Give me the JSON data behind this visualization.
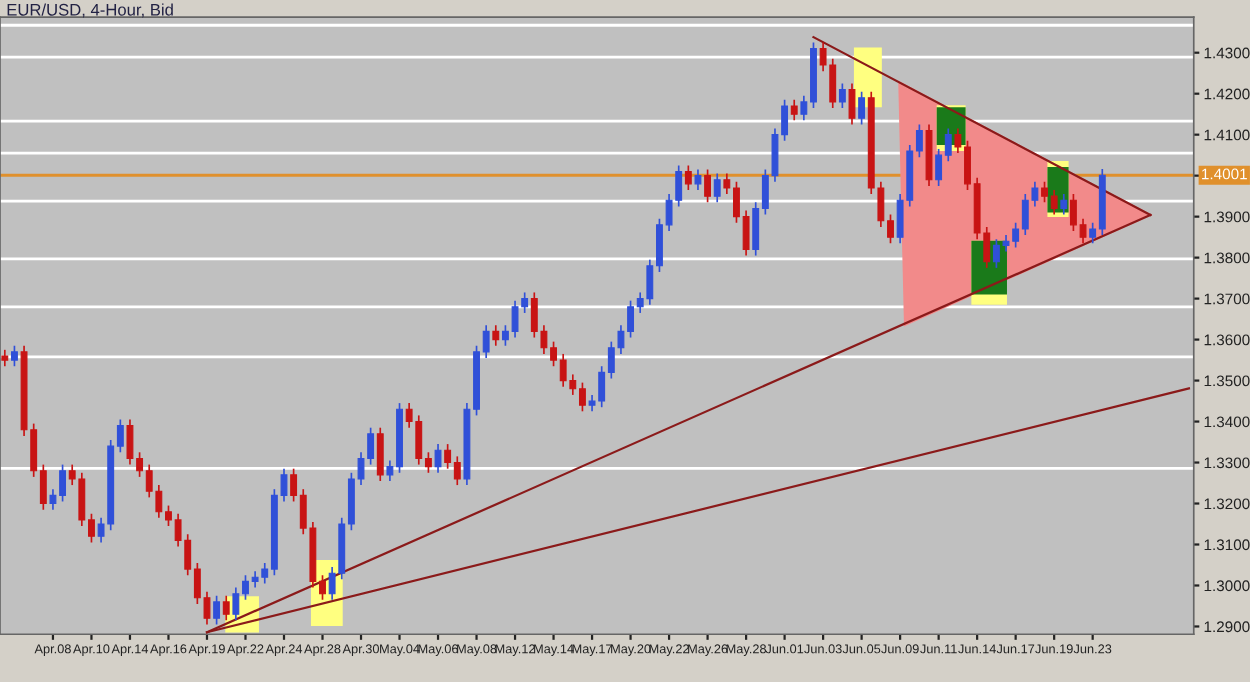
{
  "chart_data": {
    "type": "candlestick",
    "title": "EUR/USD, 4-Hour, Bid",
    "categories": [
      null,
      null,
      null,
      null,
      null,
      "Apr.08",
      null,
      null,
      null,
      "Apr.10",
      null,
      null,
      null,
      "Apr.14",
      null,
      null,
      null,
      "Apr.16",
      null,
      null,
      null,
      "Apr.19",
      null,
      null,
      null,
      "Apr.22",
      null,
      null,
      null,
      "Apr.24",
      null,
      null,
      null,
      "Apr.28",
      null,
      null,
      null,
      "Apr.30",
      null,
      null,
      null,
      "May.04",
      null,
      null,
      null,
      "May.06",
      null,
      null,
      null,
      "May.08",
      null,
      null,
      null,
      "May.12",
      null,
      null,
      null,
      "May.14",
      null,
      null,
      null,
      "May.17",
      null,
      null,
      null,
      "May.20",
      null,
      null,
      null,
      "May.22",
      null,
      null,
      null,
      "May.26",
      null,
      null,
      null,
      "May.28",
      null,
      null,
      null,
      "Jun.01",
      null,
      null,
      null,
      "Jun.03",
      null,
      null,
      null,
      "Jun.05",
      null,
      null,
      null,
      "Jun.09",
      null,
      null,
      null,
      "Jun.11",
      null,
      null,
      null,
      "Jun.14",
      null,
      null,
      null,
      "Jun.17",
      null,
      null,
      null,
      "Jun.19",
      null,
      null,
      null,
      "Jun.23",
      null,
      null,
      null,
      null,
      null,
      null,
      null,
      null,
      null,
      null
    ],
    "ohlc": [
      [
        1.356,
        1.3575,
        1.3535,
        1.355
      ],
      [
        1.355,
        1.3585,
        1.3535,
        1.357
      ],
      [
        1.357,
        1.3585,
        1.3365,
        1.338
      ],
      [
        1.338,
        1.3395,
        1.3265,
        1.328
      ],
      [
        1.328,
        1.3295,
        1.3185,
        1.32
      ],
      [
        1.32,
        1.3235,
        1.3185,
        1.322
      ],
      [
        1.322,
        1.3295,
        1.3205,
        1.328
      ],
      [
        1.328,
        1.3295,
        1.3245,
        1.326
      ],
      [
        1.326,
        1.3275,
        1.3145,
        1.316
      ],
      [
        1.316,
        1.3175,
        1.3105,
        1.312
      ],
      [
        1.312,
        1.3165,
        1.3105,
        1.315
      ],
      [
        1.315,
        1.3355,
        1.3135,
        1.334
      ],
      [
        1.334,
        1.3405,
        1.3325,
        1.339
      ],
      [
        1.339,
        1.3405,
        1.3295,
        1.331
      ],
      [
        1.331,
        1.3325,
        1.3265,
        1.328
      ],
      [
        1.328,
        1.3295,
        1.3215,
        1.323
      ],
      [
        1.323,
        1.3245,
        1.3165,
        1.318
      ],
      [
        1.318,
        1.3195,
        1.3145,
        1.316
      ],
      [
        1.316,
        1.3175,
        1.3095,
        1.311
      ],
      [
        1.311,
        1.3125,
        1.3025,
        1.304
      ],
      [
        1.304,
        1.3055,
        1.2955,
        1.297
      ],
      [
        1.297,
        1.2985,
        1.2905,
        1.292
      ],
      [
        1.292,
        1.2975,
        1.2905,
        1.296
      ],
      [
        1.296,
        1.2975,
        1.2915,
        1.293
      ],
      [
        1.293,
        1.2995,
        1.2915,
        1.298
      ],
      [
        1.298,
        1.3025,
        1.2965,
        1.301
      ],
      [
        1.301,
        1.3035,
        1.2995,
        1.302
      ],
      [
        1.302,
        1.3055,
        1.3005,
        1.304
      ],
      [
        1.304,
        1.3235,
        1.3025,
        1.322
      ],
      [
        1.322,
        1.3285,
        1.3205,
        1.327
      ],
      [
        1.327,
        1.3285,
        1.3205,
        1.322
      ],
      [
        1.322,
        1.3235,
        1.3125,
        1.314
      ],
      [
        1.314,
        1.3155,
        1.2995,
        1.301
      ],
      [
        1.301,
        1.3025,
        1.2965,
        1.298
      ],
      [
        1.298,
        1.3045,
        1.2965,
        1.303
      ],
      [
        1.303,
        1.3165,
        1.3015,
        1.315
      ],
      [
        1.315,
        1.3275,
        1.3135,
        1.326
      ],
      [
        1.326,
        1.3325,
        1.3245,
        1.331
      ],
      [
        1.331,
        1.3385,
        1.3295,
        1.337
      ],
      [
        1.337,
        1.3385,
        1.3255,
        1.327
      ],
      [
        1.327,
        1.3305,
        1.3255,
        1.329
      ],
      [
        1.329,
        1.3445,
        1.3275,
        1.343
      ],
      [
        1.343,
        1.3445,
        1.3385,
        1.34
      ],
      [
        1.34,
        1.3415,
        1.3295,
        1.331
      ],
      [
        1.331,
        1.3325,
        1.3275,
        1.329
      ],
      [
        1.329,
        1.3345,
        1.3275,
        1.333
      ],
      [
        1.333,
        1.3345,
        1.3285,
        1.33
      ],
      [
        1.33,
        1.3315,
        1.3245,
        1.326
      ],
      [
        1.326,
        1.3445,
        1.3245,
        1.343
      ],
      [
        1.343,
        1.3585,
        1.3415,
        1.357
      ],
      [
        1.357,
        1.3635,
        1.3555,
        1.362
      ],
      [
        1.362,
        1.3635,
        1.3585,
        1.36
      ],
      [
        1.36,
        1.3635,
        1.3585,
        1.362
      ],
      [
        1.362,
        1.3695,
        1.3605,
        1.368
      ],
      [
        1.368,
        1.3715,
        1.3665,
        1.37
      ],
      [
        1.37,
        1.3715,
        1.3605,
        1.362
      ],
      [
        1.362,
        1.3635,
        1.3565,
        1.358
      ],
      [
        1.358,
        1.3595,
        1.3535,
        1.355
      ],
      [
        1.355,
        1.3565,
        1.3485,
        1.35
      ],
      [
        1.35,
        1.3515,
        1.3465,
        1.348
      ],
      [
        1.348,
        1.3495,
        1.3425,
        1.344
      ],
      [
        1.344,
        1.3465,
        1.3425,
        1.345
      ],
      [
        1.345,
        1.3535,
        1.3435,
        1.352
      ],
      [
        1.352,
        1.3595,
        1.3505,
        1.358
      ],
      [
        1.358,
        1.3635,
        1.3565,
        1.362
      ],
      [
        1.362,
        1.3695,
        1.3605,
        1.368
      ],
      [
        1.368,
        1.3715,
        1.3665,
        1.37
      ],
      [
        1.37,
        1.3795,
        1.3685,
        1.378
      ],
      [
        1.378,
        1.3895,
        1.3765,
        1.388
      ],
      [
        1.388,
        1.3955,
        1.3865,
        1.394
      ],
      [
        1.394,
        1.4025,
        1.3925,
        1.401
      ],
      [
        1.401,
        1.4025,
        1.3965,
        1.398
      ],
      [
        1.398,
        1.4015,
        1.3965,
        1.4
      ],
      [
        1.4,
        1.4015,
        1.3935,
        1.395
      ],
      [
        1.395,
        1.4005,
        1.3935,
        1.399
      ],
      [
        1.399,
        1.4005,
        1.3955,
        1.397
      ],
      [
        1.397,
        1.3985,
        1.3885,
        1.39
      ],
      [
        1.39,
        1.3915,
        1.3805,
        1.382
      ],
      [
        1.382,
        1.3935,
        1.3805,
        1.392
      ],
      [
        1.392,
        1.4015,
        1.3905,
        1.4
      ],
      [
        1.4,
        1.4115,
        1.3985,
        1.41
      ],
      [
        1.41,
        1.4185,
        1.4085,
        1.417
      ],
      [
        1.417,
        1.4185,
        1.4135,
        1.415
      ],
      [
        1.415,
        1.4195,
        1.4135,
        1.418
      ],
      [
        1.418,
        1.4325,
        1.4165,
        1.431
      ],
      [
        1.431,
        1.4325,
        1.4255,
        1.427
      ],
      [
        1.427,
        1.4285,
        1.4165,
        1.418
      ],
      [
        1.418,
        1.4225,
        1.4165,
        1.421
      ],
      [
        1.421,
        1.4225,
        1.4125,
        1.414
      ],
      [
        1.414,
        1.4205,
        1.4125,
        1.419
      ],
      [
        1.419,
        1.4205,
        1.3955,
        1.397
      ],
      [
        1.397,
        1.3985,
        1.3875,
        1.389
      ],
      [
        1.389,
        1.3905,
        1.3835,
        1.385
      ],
      [
        1.385,
        1.3955,
        1.3835,
        1.394
      ],
      [
        1.394,
        1.4075,
        1.3925,
        1.406
      ],
      [
        1.406,
        1.4125,
        1.4045,
        1.411
      ],
      [
        1.411,
        1.4125,
        1.3975,
        1.399
      ],
      [
        1.399,
        1.4065,
        1.3975,
        1.405
      ],
      [
        1.405,
        1.4115,
        1.4035,
        1.41
      ],
      [
        1.41,
        1.4115,
        1.4055,
        1.407
      ],
      [
        1.407,
        1.4085,
        1.3965,
        1.398
      ],
      [
        1.398,
        1.3995,
        1.3845,
        1.386
      ],
      [
        1.386,
        1.3875,
        1.3775,
        1.379
      ],
      [
        1.379,
        1.3845,
        1.3775,
        1.383
      ],
      [
        1.383,
        1.3855,
        1.3815,
        1.384
      ],
      [
        1.384,
        1.3885,
        1.3825,
        1.387
      ],
      [
        1.387,
        1.3955,
        1.3855,
        1.394
      ],
      [
        1.394,
        1.3985,
        1.3925,
        1.397
      ],
      [
        1.397,
        1.3985,
        1.3935,
        1.395
      ],
      [
        1.395,
        1.3965,
        1.3905,
        1.392
      ],
      [
        1.392,
        1.3955,
        1.3905,
        1.394
      ],
      [
        1.394,
        1.3955,
        1.3865,
        1.388
      ],
      [
        1.388,
        1.3895,
        1.3835,
        1.385
      ],
      [
        1.385,
        1.3885,
        1.3835,
        1.387
      ],
      [
        1.387,
        1.4016,
        1.3855,
        1.4001
      ],
      null,
      null,
      null,
      null,
      null,
      null,
      null,
      null,
      null
    ],
    "series": [
      {
        "type": "line",
        "color": "#8b1a1a",
        "values": [
          null,
          null,
          null,
          null,
          null,
          null,
          null,
          null,
          null,
          null,
          null,
          null,
          null,
          null,
          null,
          null,
          null,
          null,
          null,
          null,
          null,
          null,
          null,
          null,
          null,
          null,
          null,
          null,
          null,
          null,
          null,
          null,
          null,
          null,
          null,
          null,
          null,
          null,
          null,
          null,
          null,
          null,
          null,
          null,
          null,
          null,
          null,
          null,
          null,
          null,
          null,
          null,
          null,
          null,
          null,
          null,
          null,
          null,
          null,
          null,
          null,
          null,
          null,
          null,
          null,
          null,
          null,
          null,
          null,
          null,
          null,
          null,
          null,
          null,
          null,
          null,
          null,
          null,
          null,
          null,
          null,
          null,
          null,
          null,
          1.4338,
          null,
          null,
          null,
          null,
          null,
          null,
          null,
          null,
          null,
          null,
          null,
          null,
          null,
          null,
          null,
          null,
          null,
          null,
          null,
          null,
          null,
          null,
          null,
          null,
          null,
          null,
          null,
          null,
          null,
          null,
          null,
          null,
          null,
          null,
          1.3904,
          null,
          null,
          null,
          null
        ]
      },
      {
        "type": "line",
        "color": "#8b1a1a",
        "values": [
          null,
          null,
          null,
          null,
          null,
          null,
          null,
          null,
          null,
          null,
          null,
          null,
          null,
          null,
          null,
          null,
          null,
          null,
          null,
          null,
          null,
          1.2886,
          null,
          null,
          null,
          null,
          null,
          null,
          null,
          null,
          null,
          null,
          null,
          null,
          null,
          null,
          null,
          null,
          null,
          null,
          null,
          null,
          null,
          null,
          null,
          null,
          null,
          null,
          null,
          null,
          null,
          null,
          null,
          null,
          null,
          null,
          null,
          null,
          null,
          null,
          null,
          null,
          null,
          null,
          null,
          null,
          null,
          null,
          null,
          null,
          null,
          null,
          null,
          null,
          null,
          null,
          null,
          null,
          null,
          null,
          null,
          null,
          null,
          null,
          null,
          null,
          null,
          null,
          null,
          null,
          null,
          null,
          null,
          null,
          null,
          null,
          null,
          null,
          null,
          null,
          null,
          null,
          null,
          null,
          null,
          null,
          null,
          null,
          null,
          null,
          null,
          null,
          null,
          null,
          null,
          null,
          null,
          null,
          null,
          1.3904,
          null,
          null,
          null,
          null
        ]
      },
      {
        "type": "line",
        "color": "#8b1a1a",
        "values": [
          null,
          null,
          null,
          null,
          null,
          null,
          null,
          null,
          null,
          null,
          null,
          null,
          null,
          null,
          null,
          null,
          null,
          null,
          null,
          null,
          null,
          1.2886,
          null,
          null,
          null,
          null,
          null,
          null,
          null,
          null,
          null,
          null,
          null,
          null,
          null,
          null,
          null,
          null,
          null,
          null,
          null,
          null,
          null,
          null,
          null,
          null,
          null,
          null,
          null,
          null,
          null,
          null,
          null,
          null,
          null,
          null,
          null,
          null,
          null,
          null,
          null,
          null,
          null,
          null,
          null,
          null,
          null,
          null,
          null,
          null,
          null,
          null,
          null,
          null,
          null,
          null,
          null,
          null,
          null,
          null,
          null,
          null,
          null,
          null,
          null,
          null,
          null,
          null,
          null,
          null,
          null,
          null,
          null,
          null,
          null,
          null,
          null,
          null,
          null,
          null,
          null,
          null,
          null,
          null,
          null,
          null,
          null,
          null,
          null,
          null,
          null,
          null,
          null,
          null,
          null,
          null,
          null,
          null,
          null,
          null,
          null,
          null,
          null,
          1.3481
        ]
      }
    ],
    "ref_lines": [
      {
        "axis": "y",
        "value": 1.4367,
        "color": "#ffffff"
      },
      {
        "axis": "y",
        "value": 1.4289,
        "color": "#ffffff"
      },
      {
        "axis": "y",
        "value": 1.4133,
        "color": "#ffffff"
      },
      {
        "axis": "y",
        "value": 1.4055,
        "color": "#ffffff"
      },
      {
        "axis": "y",
        "value": 1.3938,
        "color": "#ffffff"
      },
      {
        "axis": "y",
        "value": 1.3797,
        "color": "#ffffff"
      },
      {
        "axis": "y",
        "value": 1.368,
        "color": "#ffffff"
      },
      {
        "axis": "y",
        "value": 1.3558,
        "color": "#ffffff"
      },
      {
        "axis": "y",
        "value": 1.3286,
        "color": "#ffffff"
      },
      {
        "axis": "y",
        "value": 1.4001,
        "color": "#e0902c",
        "label": "1.4001"
      }
    ],
    "ylim": [
      1.2881,
      1.4387
    ],
    "yticks": [
      {
        "value": 1.29,
        "label": "1.2900"
      },
      {
        "value": 1.3,
        "label": "1.3000"
      },
      {
        "value": 1.31,
        "label": "1.3100"
      },
      {
        "value": 1.32,
        "label": "1.3200"
      },
      {
        "value": 1.33,
        "label": "1.3300"
      },
      {
        "value": 1.34,
        "label": "1.3400"
      },
      {
        "value": 1.35,
        "label": "1.3500"
      },
      {
        "value": 1.36,
        "label": "1.3600"
      },
      {
        "value": 1.37,
        "label": "1.3700"
      },
      {
        "value": 1.38,
        "label": "1.3800"
      },
      {
        "value": 1.39,
        "label": "1.3900"
      },
      {
        "value": 1.4,
        "label": null
      },
      {
        "value": 1.41,
        "label": "1.4100"
      },
      {
        "value": 1.42,
        "label": "1.4200"
      },
      {
        "value": 1.43,
        "label": "1.4300"
      }
    ],
    "grid": false,
    "legend": false
  }
}
